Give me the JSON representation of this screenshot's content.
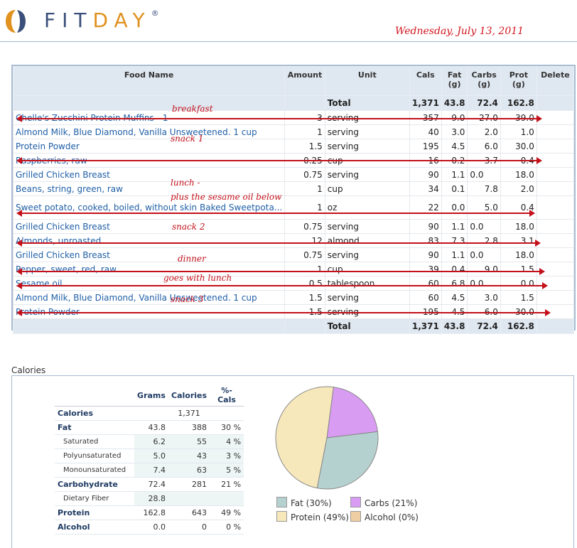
{
  "brand": {
    "fit": "FIT",
    "day": "DAY",
    "reg": "®"
  },
  "date": "Wednesday, July 13, 2011",
  "food_table": {
    "headers": {
      "food_name": "Food Name",
      "amount": "Amount",
      "unit": "Unit",
      "cals": "Cals",
      "fat": "Fat (g)",
      "carbs": "Carbs (g)",
      "prot": "Prot (g)",
      "delete": "Delete"
    },
    "total": {
      "label": "Total",
      "cals": "1,371",
      "fat": "43.8",
      "carbs": "72.4",
      "prot": "162.8"
    },
    "rows": [
      {
        "name": "Chelle's Zucchini Protein Muffins - 1",
        "amount": "3",
        "unit": "serving",
        "cals": "357",
        "fat": "9.0",
        "carbs": "27.0",
        "prot": "39.0"
      },
      {
        "name": "Almond Milk, Blue Diamond, Vanilla Unsweetened. 1 cup",
        "amount": "1",
        "unit": "serving",
        "cals": "40",
        "fat": "3.0",
        "carbs": "2.0",
        "prot": "1.0"
      },
      {
        "name": "Protein Powder",
        "amount": "1.5",
        "unit": "serving",
        "cals": "195",
        "fat": "4.5",
        "carbs": "6.0",
        "prot": "30.0"
      },
      {
        "name": "Raspberries, raw",
        "amount": "0.25",
        "unit": "cup",
        "cals": "16",
        "fat": "0.2",
        "carbs": "3.7",
        "prot": "0.4"
      },
      {
        "name": "Grilled Chicken Breast",
        "amount": "0.75",
        "unit": "serving",
        "cals": "90",
        "fat": "1.1",
        "carbs": "0.0",
        "prot": "18.0"
      },
      {
        "name": "Beans, string, green, raw",
        "amount": "1",
        "unit": "cup",
        "cals": "34",
        "fat": "0.1",
        "carbs": "7.8",
        "prot": "2.0"
      },
      {
        "name": "Sweet potato, cooked, boiled, without skin Baked Sweetpota...",
        "amount": "1",
        "unit": "oz",
        "cals": "22",
        "fat": "0.0",
        "carbs": "5.0",
        "prot": "0.4"
      },
      {
        "name": "Grilled Chicken Breast",
        "amount": "0.75",
        "unit": "serving",
        "cals": "90",
        "fat": "1.1",
        "carbs": "0.0",
        "prot": "18.0"
      },
      {
        "name": "Almonds, unroasted",
        "amount": "12",
        "unit": "almond",
        "cals": "83",
        "fat": "7.3",
        "carbs": "2.8",
        "prot": "3.1"
      },
      {
        "name": "Grilled Chicken Breast",
        "amount": "0.75",
        "unit": "serving",
        "cals": "90",
        "fat": "1.1",
        "carbs": "0.0",
        "prot": "18.0"
      },
      {
        "name": "Pepper, sweet, red, raw",
        "amount": "1",
        "unit": "cup",
        "cals": "39",
        "fat": "0.4",
        "carbs": "9.0",
        "prot": "1.5"
      },
      {
        "name": "Sesame oil",
        "amount": "0.5",
        "unit": "tablespoon",
        "cals": "60",
        "fat": "6.8",
        "carbs": "0.0",
        "prot": "0.0"
      },
      {
        "name": "Almond Milk, Blue Diamond, Vanilla Unsweetened. 1 cup",
        "amount": "1.5",
        "unit": "serving",
        "cals": "60",
        "fat": "4.5",
        "carbs": "3.0",
        "prot": "1.5"
      },
      {
        "name": "Protein Powder",
        "amount": "1.5",
        "unit": "serving",
        "cals": "195",
        "fat": "4.5",
        "carbs": "6.0",
        "prot": "30.0"
      }
    ]
  },
  "annotations": {
    "breakfast": "breakfast",
    "snack1": "snack 1",
    "lunch": "lunch -",
    "lunch_note": "plus the sesame oil below",
    "snack2": "snack 2",
    "dinner": "dinner",
    "goes_with_lunch": "goes with lunch",
    "snack3": "snack 3"
  },
  "calories_section": {
    "title": "Calories",
    "headers": {
      "grams": "Grams",
      "calories": "Calories",
      "pct": "%-Cals"
    },
    "rows": [
      {
        "label": "Calories",
        "grams": "",
        "calories": "1,371",
        "pct": ""
      },
      {
        "label": "Fat",
        "grams": "43.8",
        "calories": "388",
        "pct": "30 %"
      },
      {
        "label": "Saturated",
        "grams": "6.2",
        "calories": "55",
        "pct": "4 %"
      },
      {
        "label": "Polyunsaturated",
        "grams": "5.0",
        "calories": "43",
        "pct": "3 %"
      },
      {
        "label": "Monounsaturated",
        "grams": "7.4",
        "calories": "63",
        "pct": "5 %"
      },
      {
        "label": "Carbohydrate",
        "grams": "72.4",
        "calories": "281",
        "pct": "21 %"
      },
      {
        "label": "Dietary Fiber",
        "grams": "28.8",
        "calories": "",
        "pct": ""
      },
      {
        "label": "Protein",
        "grams": "162.8",
        "calories": "643",
        "pct": "49 %"
      },
      {
        "label": "Alcohol",
        "grams": "0.0",
        "calories": "0",
        "pct": "0 %"
      }
    ]
  },
  "chart_data": {
    "type": "pie",
    "categories": [
      "Fat",
      "Carbs",
      "Protein",
      "Alcohol"
    ],
    "values": [
      30,
      21,
      49,
      0
    ],
    "colors": [
      "#b5d1cf",
      "#d89cf2",
      "#f6e8bb",
      "#f0cea4"
    ],
    "legend": [
      "Fat (30%)",
      "Carbs (21%)",
      "Protein (49%)",
      "Alcohol (0%)"
    ],
    "legend_position": "bottom"
  }
}
